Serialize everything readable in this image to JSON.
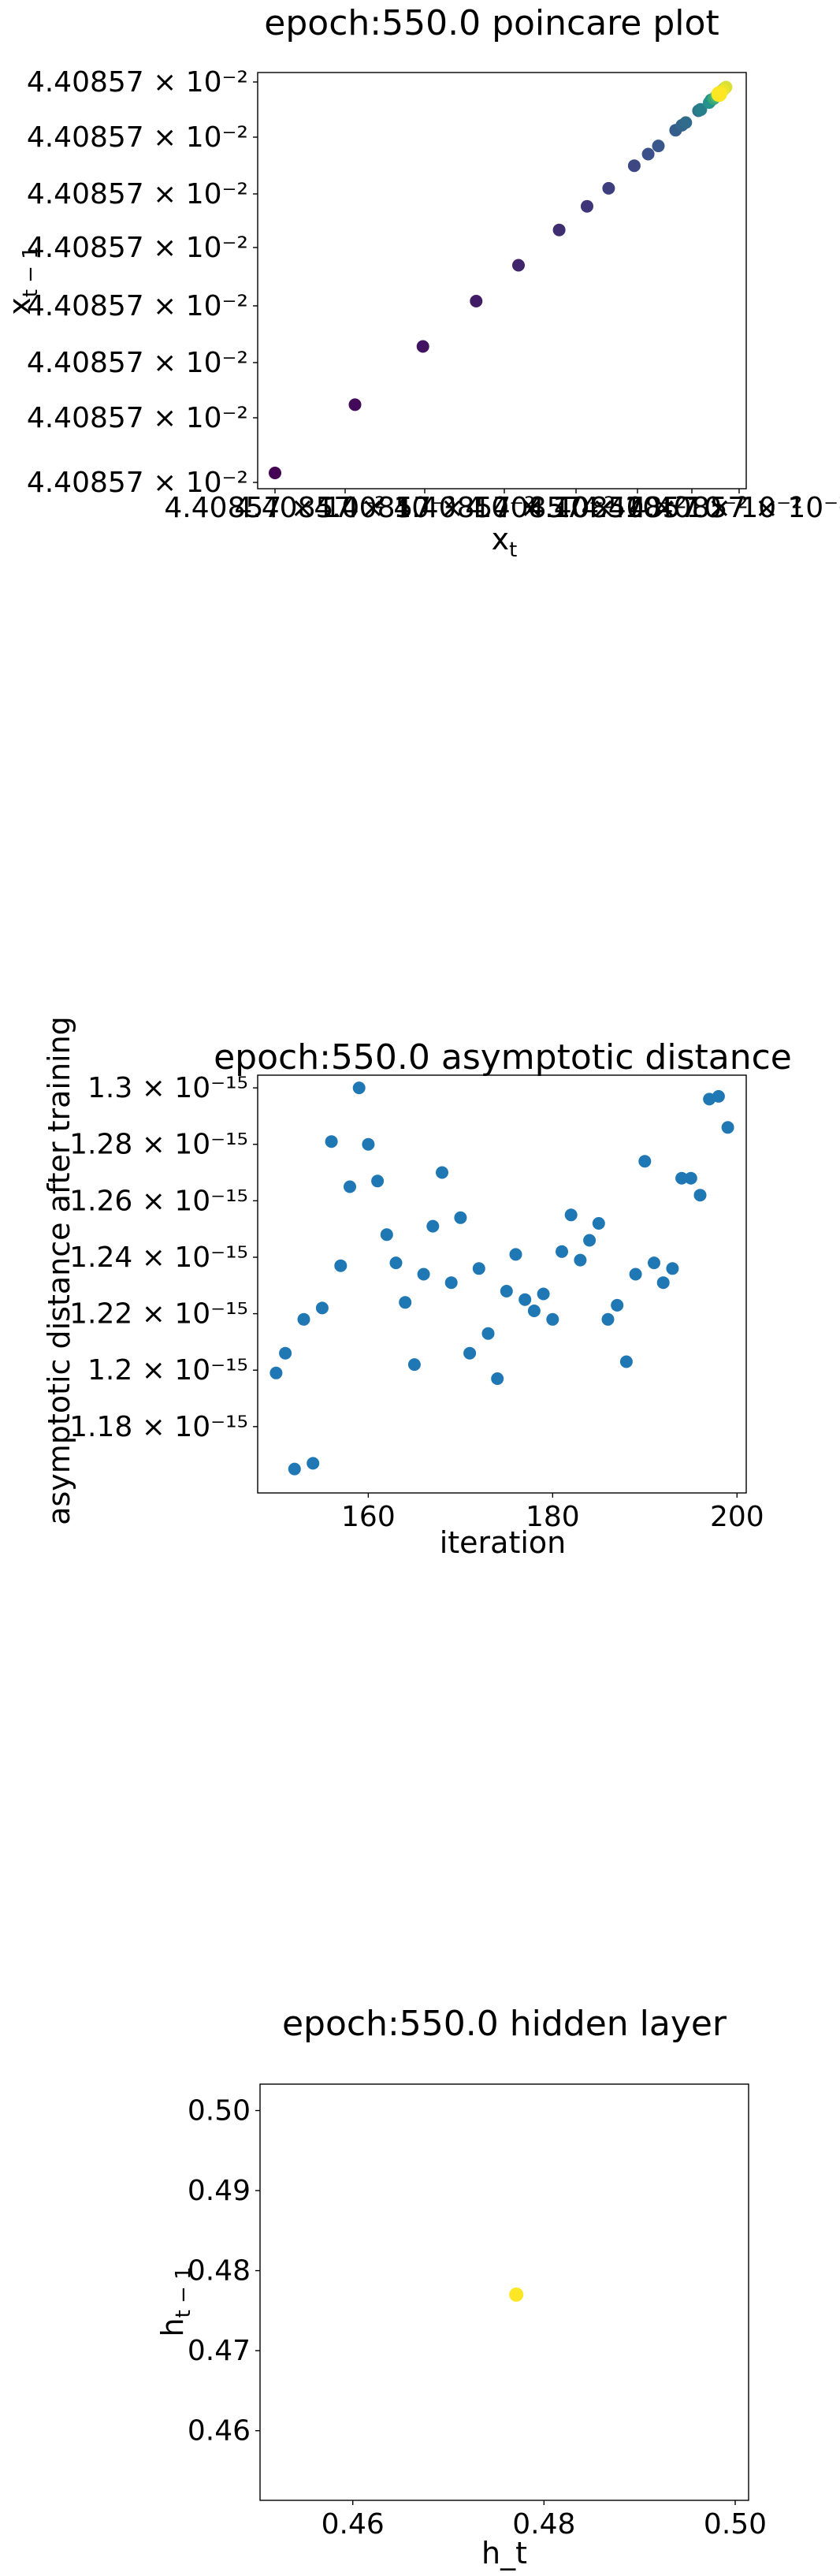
{
  "chart_data": [
    {
      "type": "scatter",
      "title": "epoch:550.0 poincare plot",
      "xlabel_main": "x",
      "xlabel_sub": "t",
      "ylabel_main": "x",
      "ylabel_sub": "t − 1",
      "y_tick_labels": [
        "4.40857 × 10⁻²",
        "4.40857 × 10⁻²",
        "4.40857 × 10⁻²",
        "4.40857 × 10⁻²",
        "4.40857 × 10⁻²",
        "4.40857 × 10⁻²",
        "4.40857 × 10⁻²",
        "4.40857 × 10⁻²"
      ],
      "x_tick_label_text": "4.40857 × 10⁻²",
      "x_tick_count": 8,
      "colormap": [
        "#440154",
        "#3b528b",
        "#21908d",
        "#5dc963",
        "#fde725"
      ],
      "points_note": "38 consecutive iterates (x_t, x_{t-1}) converging toward a fixed point; color progresses from dark purple (early) to yellow (late)",
      "n_points": 38
    },
    {
      "type": "scatter",
      "title": "epoch:550.0 asymptotic distance",
      "xlabel": "iteration",
      "ylabel": "asymptotic distance after training",
      "xlim": [
        148,
        201
      ],
      "ylim": [
        1.1565e-15,
        1.3045e-15
      ],
      "x_ticks": [
        160,
        180,
        200
      ],
      "x_tick_labels": [
        "160",
        "180",
        "200"
      ],
      "y_ticks": [
        1.18e-15,
        1.2e-15,
        1.22e-15,
        1.24e-15,
        1.26e-15,
        1.28e-15,
        1.3e-15
      ],
      "y_tick_labels": [
        "1.18 × 10⁻¹⁵",
        "1.2 × 10⁻¹⁵",
        "1.22 × 10⁻¹⁵",
        "1.24 × 10⁻¹⁵",
        "1.26 × 10⁻¹⁵",
        "1.28 × 10⁻¹⁵",
        "1.3 × 10⁻¹⁵"
      ],
      "color": "#1f77b4",
      "x": [
        150,
        151,
        152,
        153,
        154,
        155,
        156,
        157,
        158,
        159,
        160,
        161,
        162,
        163,
        164,
        165,
        166,
        167,
        168,
        169,
        170,
        171,
        172,
        173,
        174,
        175,
        176,
        177,
        178,
        179,
        180,
        181,
        182,
        183,
        184,
        185,
        186,
        187,
        188,
        189,
        190,
        191,
        192,
        193,
        194,
        195,
        196,
        197,
        198,
        199
      ],
      "y": [
        1.199e-15,
        1.206e-15,
        1.165e-15,
        1.218e-15,
        1.167e-15,
        1.222e-15,
        1.281e-15,
        1.237e-15,
        1.265e-15,
        1.3e-15,
        1.28e-15,
        1.267e-15,
        1.248e-15,
        1.238e-15,
        1.224e-15,
        1.202e-15,
        1.234e-15,
        1.251e-15,
        1.27e-15,
        1.231e-15,
        1.254e-15,
        1.206e-15,
        1.236e-15,
        1.213e-15,
        1.197e-15,
        1.228e-15,
        1.241e-15,
        1.225e-15,
        1.221e-15,
        1.227e-15,
        1.218e-15,
        1.242e-15,
        1.255e-15,
        1.239e-15,
        1.246e-15,
        1.252e-15,
        1.218e-15,
        1.223e-15,
        1.203e-15,
        1.234e-15,
        1.274e-15,
        1.238e-15,
        1.231e-15,
        1.236e-15,
        1.268e-15,
        1.268e-15,
        1.262e-15,
        1.296e-15,
        1.297e-15,
        1.286e-15
      ]
    },
    {
      "type": "scatter",
      "title": "epoch:550.0 hidden layer",
      "xlabel": "h_t",
      "ylabel_main": "h",
      "ylabel_sub": "t − 1",
      "xlim": [
        0.4503,
        0.5014
      ],
      "ylim": [
        0.4513,
        0.5033
      ],
      "x_ticks": [
        0.46,
        0.48,
        0.5
      ],
      "x_tick_labels": [
        "0.46",
        "0.48",
        "0.50"
      ],
      "y_ticks": [
        0.46,
        0.47,
        0.48,
        0.49,
        0.5
      ],
      "y_tick_labels": [
        "0.46",
        "0.47",
        "0.48",
        "0.49",
        "0.50"
      ],
      "color": "#fde725",
      "x": [
        0.4771
      ],
      "y": [
        0.477
      ]
    }
  ]
}
